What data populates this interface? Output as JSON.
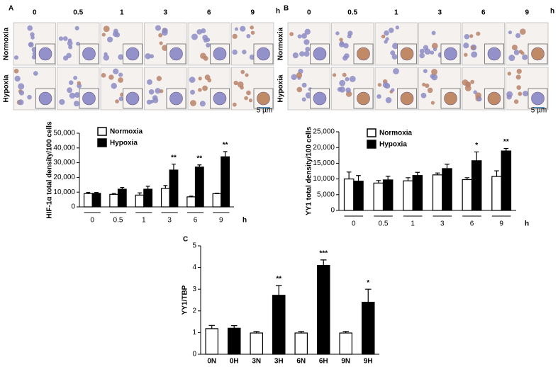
{
  "micrographs": {
    "A": {
      "columns": [
        "0",
        "0.5",
        "1",
        "3",
        "6",
        "9"
      ],
      "unit": "h",
      "rows": [
        "Normoxia",
        "Hypoxia"
      ],
      "scale_bar": "5 µm"
    },
    "B": {
      "columns": [
        "0",
        "0.5",
        "1",
        "3",
        "6",
        "9"
      ],
      "unit": "h",
      "rows": [
        "Normoxia",
        "Hypoxia"
      ],
      "scale_bar": "5 µm"
    }
  },
  "chart_data": [
    {
      "type": "grouped-bar",
      "panel_label": "A",
      "ylabel": "HIF-1α total density/100 cells",
      "xlabel": "h",
      "categories": [
        "0",
        "0.5",
        "1",
        "3",
        "6",
        "9"
      ],
      "series": [
        {
          "name": "Normoxia",
          "color": "#ffffff",
          "values": [
            9000,
            8500,
            8000,
            12500,
            6800,
            9000
          ],
          "errors": [
            800,
            600,
            1500,
            2000,
            500,
            300
          ],
          "significance": [
            null,
            null,
            null,
            null,
            null,
            null
          ]
        },
        {
          "name": "Hypoxia",
          "color": "#000000",
          "values": [
            9200,
            12000,
            12000,
            25000,
            27000,
            34000
          ],
          "errors": [
            600,
            1200,
            2000,
            4000,
            1500,
            3500
          ],
          "significance": [
            null,
            null,
            null,
            "**",
            "**",
            "**"
          ]
        }
      ],
      "ylim": [
        0,
        50000
      ],
      "yticks": [
        0,
        {
          "value": 10000,
          "label": "10,000"
        },
        {
          "value": 20000,
          "label": "20,000"
        },
        {
          "value": 30000,
          "label": "30,000"
        },
        {
          "value": 40000,
          "label": "40,000"
        },
        {
          "value": 50000,
          "label": "50,000"
        }
      ],
      "grid": false,
      "legend": "upper left"
    },
    {
      "type": "grouped-bar",
      "panel_label": "B",
      "ylabel": "YY1 total density/100 cells",
      "xlabel": "h",
      "categories": [
        "0",
        "0.5",
        "1",
        "3",
        "6",
        "9"
      ],
      "series": [
        {
          "name": "Normoxia",
          "color": "#ffffff",
          "values": [
            10000,
            8700,
            9400,
            11300,
            9800,
            10800
          ],
          "errors": [
            2200,
            800,
            1000,
            600,
            600,
            1800
          ],
          "significance": [
            null,
            null,
            null,
            null,
            null,
            null
          ]
        },
        {
          "name": "Hypoxia",
          "color": "#000000",
          "values": [
            9300,
            9700,
            11100,
            13300,
            15800,
            18900
          ],
          "errors": [
            1800,
            1200,
            1000,
            1400,
            2800,
            800
          ],
          "significance": [
            null,
            null,
            null,
            null,
            "*",
            "**"
          ]
        }
      ],
      "ylim": [
        0,
        25000
      ],
      "yticks": [
        0,
        {
          "value": 5000,
          "label": "5,000"
        },
        {
          "value": 10000,
          "label": "10,000"
        },
        {
          "value": 15000,
          "label": "15,000"
        },
        {
          "value": 20000,
          "label": "20,000"
        },
        {
          "value": 25000,
          "label": "25,000"
        }
      ],
      "grid": false,
      "legend": "upper left"
    },
    {
      "type": "bar",
      "panel_label": "C",
      "ylabel": "YY1/TBP",
      "categories": [
        "0N",
        "0H",
        "3N",
        "3H",
        "6N",
        "6H",
        "9N",
        "9H"
      ],
      "values": [
        1.18,
        1.2,
        0.98,
        2.72,
        0.98,
        4.1,
        0.98,
        2.4
      ],
      "errors": [
        0.15,
        0.12,
        0.07,
        0.45,
        0.07,
        0.25,
        0.07,
        0.6
      ],
      "significance": [
        null,
        null,
        null,
        "**",
        null,
        "***",
        null,
        "*"
      ],
      "colors": [
        "#ffffff",
        "#000000",
        "#ffffff",
        "#000000",
        "#ffffff",
        "#000000",
        "#ffffff",
        "#000000"
      ],
      "ylim": [
        0,
        5
      ],
      "yticks": [
        0,
        1,
        2,
        3,
        4,
        5
      ],
      "grid": false
    }
  ]
}
